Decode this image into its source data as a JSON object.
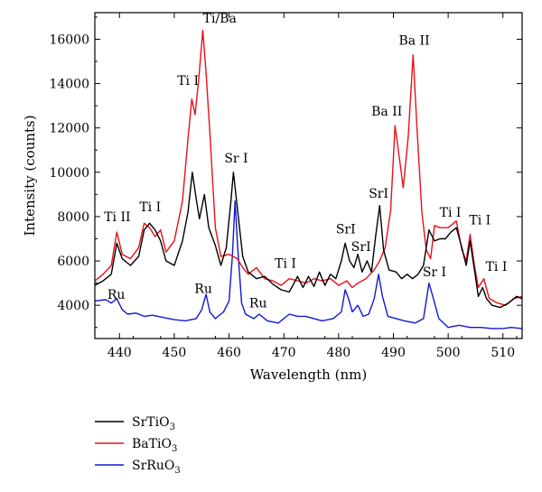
{
  "chart_data": {
    "type": "line",
    "xlabel": "Wavelength (nm)",
    "ylabel": "Intensity (counts)",
    "xlim": [
      435.5,
      513.5
    ],
    "ylim": [
      2500,
      17200
    ],
    "x_ticks": [
      440,
      450,
      460,
      470,
      480,
      490,
      500,
      510
    ],
    "y_ticks": [
      4000,
      6000,
      8000,
      10000,
      12000,
      14000,
      16000
    ],
    "grid": false,
    "legend_position": "below-left",
    "series": [
      {
        "name": "SrTiO3",
        "name_base": "SrTiO",
        "name_sub": "3",
        "color": "#000000",
        "points": [
          [
            435.5,
            4900
          ],
          [
            437,
            5100
          ],
          [
            438.5,
            5400
          ],
          [
            439.5,
            6800
          ],
          [
            440.5,
            6100
          ],
          [
            442,
            5800
          ],
          [
            443.5,
            6200
          ],
          [
            444.5,
            7400
          ],
          [
            445.5,
            7700
          ],
          [
            446.5,
            7400
          ],
          [
            447.5,
            6900
          ],
          [
            448.5,
            6000
          ],
          [
            450,
            5800
          ],
          [
            451.5,
            6900
          ],
          [
            452.5,
            8200
          ],
          [
            453.3,
            10000
          ],
          [
            454,
            8800
          ],
          [
            454.6,
            7900
          ],
          [
            455.5,
            9000
          ],
          [
            456.3,
            7500
          ],
          [
            457.5,
            6700
          ],
          [
            458.5,
            5800
          ],
          [
            459.5,
            6600
          ],
          [
            460.3,
            8600
          ],
          [
            460.8,
            10000
          ],
          [
            461.5,
            8400
          ],
          [
            462.5,
            6200
          ],
          [
            463.5,
            5500
          ],
          [
            465,
            5200
          ],
          [
            466.5,
            5300
          ],
          [
            468,
            4950
          ],
          [
            469.5,
            4700
          ],
          [
            471,
            4600
          ],
          [
            472.5,
            5300
          ],
          [
            473.5,
            4800
          ],
          [
            474.5,
            5300
          ],
          [
            475.5,
            4850
          ],
          [
            476.5,
            5500
          ],
          [
            477.5,
            4900
          ],
          [
            478.5,
            5400
          ],
          [
            479.5,
            5200
          ],
          [
            480.5,
            6000
          ],
          [
            481.2,
            6800
          ],
          [
            482,
            6000
          ],
          [
            482.8,
            5700
          ],
          [
            483.5,
            6300
          ],
          [
            484.3,
            5500
          ],
          [
            485.2,
            6000
          ],
          [
            486,
            5500
          ],
          [
            486.8,
            7200
          ],
          [
            487.5,
            8500
          ],
          [
            488.2,
            6500
          ],
          [
            489.2,
            5600
          ],
          [
            490.5,
            5500
          ],
          [
            491.5,
            5200
          ],
          [
            492.5,
            5400
          ],
          [
            493.5,
            5200
          ],
          [
            494.5,
            5400
          ],
          [
            495.5,
            5800
          ],
          [
            496.5,
            7400
          ],
          [
            497.5,
            6900
          ],
          [
            498.5,
            7000
          ],
          [
            499.5,
            7000
          ],
          [
            500.5,
            7300
          ],
          [
            501.5,
            7500
          ],
          [
            502.5,
            6600
          ],
          [
            503.3,
            5800
          ],
          [
            504,
            6900
          ],
          [
            504.8,
            5600
          ],
          [
            505.5,
            4400
          ],
          [
            506.3,
            4800
          ],
          [
            507,
            4300
          ],
          [
            508,
            4000
          ],
          [
            509.5,
            3900
          ],
          [
            511,
            4100
          ],
          [
            512.5,
            4400
          ],
          [
            513.5,
            4300
          ]
        ]
      },
      {
        "name": "BaTiO3",
        "name_base": "BaTiO",
        "name_sub": "3",
        "color": "#e8101a",
        "points": [
          [
            435.5,
            5100
          ],
          [
            437,
            5400
          ],
          [
            438.5,
            5800
          ],
          [
            439.5,
            7300
          ],
          [
            440.5,
            6300
          ],
          [
            442,
            6100
          ],
          [
            443.5,
            6600
          ],
          [
            444.5,
            7700
          ],
          [
            445.5,
            7500
          ],
          [
            446.5,
            7100
          ],
          [
            447.5,
            7400
          ],
          [
            448.5,
            6400
          ],
          [
            450,
            6900
          ],
          [
            451.5,
            8700
          ],
          [
            452.5,
            11500
          ],
          [
            453.2,
            13300
          ],
          [
            453.8,
            12600
          ],
          [
            454.5,
            14300
          ],
          [
            455.2,
            16400
          ],
          [
            455.8,
            14500
          ],
          [
            456.5,
            11800
          ],
          [
            457.5,
            7500
          ],
          [
            458.5,
            6200
          ],
          [
            460,
            6300
          ],
          [
            461.5,
            6100
          ],
          [
            462.5,
            5700
          ],
          [
            463.5,
            5400
          ],
          [
            465,
            5700
          ],
          [
            466.5,
            5200
          ],
          [
            468,
            5100
          ],
          [
            469.5,
            4900
          ],
          [
            471,
            5200
          ],
          [
            472.5,
            5100
          ],
          [
            474,
            5000
          ],
          [
            475.5,
            5200
          ],
          [
            477,
            5100
          ],
          [
            478.5,
            5200
          ],
          [
            480,
            4900
          ],
          [
            481.5,
            5100
          ],
          [
            482.5,
            4800
          ],
          [
            483.5,
            5000
          ],
          [
            485,
            5200
          ],
          [
            486.5,
            5600
          ],
          [
            487.5,
            6000
          ],
          [
            488.5,
            6600
          ],
          [
            489.5,
            8300
          ],
          [
            490.3,
            12100
          ],
          [
            491,
            10800
          ],
          [
            491.8,
            9300
          ],
          [
            492.7,
            11600
          ],
          [
            493.6,
            15300
          ],
          [
            494.3,
            12000
          ],
          [
            495.2,
            8200
          ],
          [
            496,
            6500
          ],
          [
            496.8,
            6100
          ],
          [
            497.5,
            7600
          ],
          [
            498.5,
            7500
          ],
          [
            500,
            7500
          ],
          [
            501.5,
            7800
          ],
          [
            502.5,
            6500
          ],
          [
            503.3,
            6000
          ],
          [
            504,
            7200
          ],
          [
            504.8,
            5800
          ],
          [
            505.5,
            4800
          ],
          [
            506.5,
            5200
          ],
          [
            507.5,
            4300
          ],
          [
            509,
            4100
          ],
          [
            510.5,
            4000
          ],
          [
            512,
            4300
          ],
          [
            513.5,
            4400
          ]
        ]
      },
      {
        "name": "SrRuO3",
        "name_base": "SrRuO",
        "name_sub": "3",
        "color": "#1018d6",
        "points": [
          [
            435.5,
            4200
          ],
          [
            437.5,
            4250
          ],
          [
            438.5,
            4100
          ],
          [
            439.5,
            4300
          ],
          [
            440.5,
            3800
          ],
          [
            441.5,
            3600
          ],
          [
            443,
            3650
          ],
          [
            444.5,
            3500
          ],
          [
            446,
            3550
          ],
          [
            448,
            3450
          ],
          [
            450,
            3350
          ],
          [
            452,
            3300
          ],
          [
            454,
            3400
          ],
          [
            455,
            3800
          ],
          [
            455.8,
            4500
          ],
          [
            456.5,
            3700
          ],
          [
            457.5,
            3400
          ],
          [
            459,
            3700
          ],
          [
            460,
            4200
          ],
          [
            460.6,
            6200
          ],
          [
            461.1,
            8700
          ],
          [
            461.6,
            6500
          ],
          [
            462.3,
            4100
          ],
          [
            463,
            3600
          ],
          [
            464.5,
            3400
          ],
          [
            465.5,
            3600
          ],
          [
            467,
            3300
          ],
          [
            469,
            3200
          ],
          [
            471,
            3600
          ],
          [
            472.5,
            3500
          ],
          [
            474,
            3500
          ],
          [
            475.5,
            3400
          ],
          [
            477,
            3300
          ],
          [
            479,
            3400
          ],
          [
            480.5,
            3700
          ],
          [
            481.2,
            4700
          ],
          [
            481.8,
            4300
          ],
          [
            482.5,
            3700
          ],
          [
            483.5,
            4000
          ],
          [
            484.5,
            3500
          ],
          [
            485.5,
            3600
          ],
          [
            486.5,
            4300
          ],
          [
            487.3,
            5400
          ],
          [
            488,
            4400
          ],
          [
            489,
            3500
          ],
          [
            490.5,
            3400
          ],
          [
            492,
            3300
          ],
          [
            494,
            3200
          ],
          [
            495.5,
            3400
          ],
          [
            496.5,
            5000
          ],
          [
            497.3,
            4300
          ],
          [
            498.3,
            3400
          ],
          [
            500,
            3000
          ],
          [
            502,
            3100
          ],
          [
            504,
            3000
          ],
          [
            506,
            3000
          ],
          [
            508,
            2950
          ],
          [
            510,
            2950
          ],
          [
            511.5,
            3000
          ],
          [
            513.5,
            2950
          ]
        ]
      }
    ],
    "annotations": [
      {
        "text": "Ti/Ba",
        "x": 458.3,
        "y": 16750
      },
      {
        "text": "Ti I",
        "x": 452.5,
        "y": 13950
      },
      {
        "text": "Ti I",
        "x": 445.6,
        "y": 8250
      },
      {
        "text": "Ti II",
        "x": 439.6,
        "y": 7800
      },
      {
        "text": "Sr I",
        "x": 461.3,
        "y": 10450
      },
      {
        "text": "Ru",
        "x": 439.4,
        "y": 4300
      },
      {
        "text": "Ru",
        "x": 455.3,
        "y": 4550
      },
      {
        "text": "Ru",
        "x": 465.3,
        "y": 3900
      },
      {
        "text": "Ti I",
        "x": 470.3,
        "y": 5700
      },
      {
        "text": "SrI",
        "x": 481.3,
        "y": 7250
      },
      {
        "text": "SrI",
        "x": 484.1,
        "y": 6450
      },
      {
        "text": "SrI",
        "x": 487.3,
        "y": 8850
      },
      {
        "text": "Ba II",
        "x": 488.8,
        "y": 12550
      },
      {
        "text": "Ba II",
        "x": 493.8,
        "y": 15750
      },
      {
        "text": "Sr I",
        "x": 497.5,
        "y": 5300
      },
      {
        "text": "Ti I",
        "x": 500.4,
        "y": 8000
      },
      {
        "text": "Ti I",
        "x": 505.8,
        "y": 7650
      },
      {
        "text": "Ti I",
        "x": 508.8,
        "y": 5550
      }
    ]
  }
}
